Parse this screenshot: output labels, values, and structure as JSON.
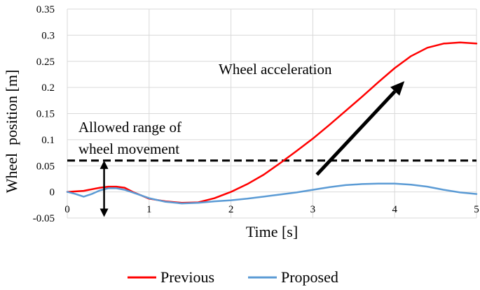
{
  "chart_data": {
    "type": "line",
    "xlabel": "Time [s]",
    "ylabel": "Wheel  position [m]",
    "xlim": [
      0,
      5
    ],
    "ylim": [
      -0.05,
      0.35
    ],
    "x_ticks": [
      "0",
      "1",
      "2",
      "3",
      "4",
      "5"
    ],
    "y_ticks": [
      "-0.05",
      "0",
      "0.05",
      "0.1",
      "0.15",
      "0.2",
      "0.25",
      "0.3",
      "0.35"
    ],
    "grid": true,
    "legend_position": "bottom",
    "series": [
      {
        "name": "Previous",
        "color": "#ff0000",
        "x": [
          0,
          0.2,
          0.4,
          0.5,
          0.6,
          0.7,
          0.8,
          1.0,
          1.2,
          1.4,
          1.6,
          1.8,
          2.0,
          2.2,
          2.4,
          2.6,
          2.8,
          3.0,
          3.2,
          3.4,
          3.6,
          3.8,
          4.0,
          4.2,
          4.4,
          4.6,
          4.8,
          5.0
        ],
        "y": [
          0.0,
          0.002,
          0.008,
          0.01,
          0.01,
          0.008,
          0.0,
          -0.013,
          -0.018,
          -0.021,
          -0.02,
          -0.012,
          0.0,
          0.015,
          0.033,
          0.055,
          0.078,
          0.102,
          0.128,
          0.155,
          0.182,
          0.21,
          0.237,
          0.26,
          0.276,
          0.284,
          0.286,
          0.284
        ]
      },
      {
        "name": "Proposed",
        "color": "#5b9bd5",
        "x": [
          0,
          0.1,
          0.2,
          0.3,
          0.4,
          0.5,
          0.6,
          0.7,
          0.8,
          1.0,
          1.2,
          1.4,
          1.6,
          1.8,
          2.0,
          2.2,
          2.4,
          2.6,
          2.8,
          3.0,
          3.2,
          3.4,
          3.6,
          3.8,
          4.0,
          4.2,
          4.4,
          4.6,
          4.8,
          5.0
        ],
        "y": [
          0.0,
          -0.004,
          -0.009,
          -0.004,
          0.003,
          0.007,
          0.007,
          0.004,
          -0.001,
          -0.012,
          -0.019,
          -0.022,
          -0.021,
          -0.018,
          -0.016,
          -0.013,
          -0.009,
          -0.005,
          -0.001,
          0.004,
          0.009,
          0.013,
          0.015,
          0.016,
          0.016,
          0.014,
          0.01,
          0.004,
          -0.001,
          -0.004
        ]
      }
    ],
    "reference_line": {
      "y": 0.06,
      "style": "dashed",
      "color": "#000000"
    },
    "annotations": [
      {
        "id": "accel",
        "text": "Wheel acceleration",
        "arrow_from": [
          3.05,
          0.033
        ],
        "arrow_to": [
          4.12,
          0.212
        ]
      },
      {
        "id": "range",
        "lines": [
          "Allowed range of",
          "wheel movement"
        ],
        "arrow_x": 0.45,
        "arrow_y_range": [
          -0.048,
          0.06
        ]
      }
    ]
  }
}
